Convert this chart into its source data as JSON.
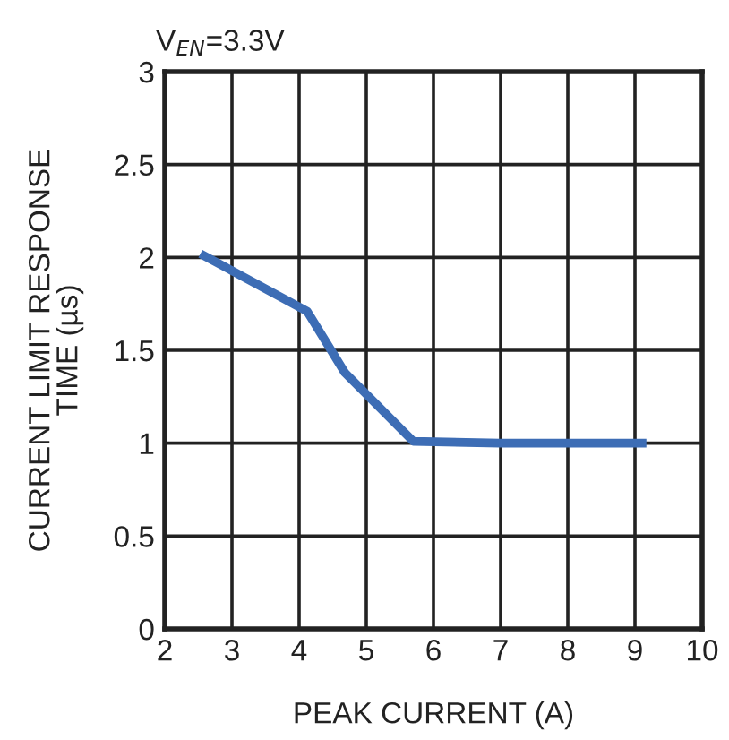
{
  "chart_data": {
    "type": "line",
    "annotations": [
      "V$_{EN}$=3.3V"
    ],
    "xlabel": "PEAK CURRENT (A)",
    "ylabel": "CURRENT LIMIT RESPONSE\nTIME (µs)",
    "series": [
      {
        "color": "#3d6db5",
        "x": [
          2.53,
          4.12,
          4.68,
          5.7,
          6.99,
          9.17
        ],
        "values": [
          2.02,
          1.71,
          1.38,
          1.01,
          1.0,
          1.0
        ]
      }
    ],
    "xlim": [
      2,
      10
    ],
    "xticks": [
      2,
      3,
      4,
      5,
      6,
      7,
      8,
      9,
      10
    ],
    "ylim": [
      0,
      3
    ],
    "yticks": [
      0,
      0.5,
      1,
      1.5,
      2,
      2.5,
      3
    ],
    "grid": true,
    "marker": "none",
    "line_style": "solid"
  }
}
